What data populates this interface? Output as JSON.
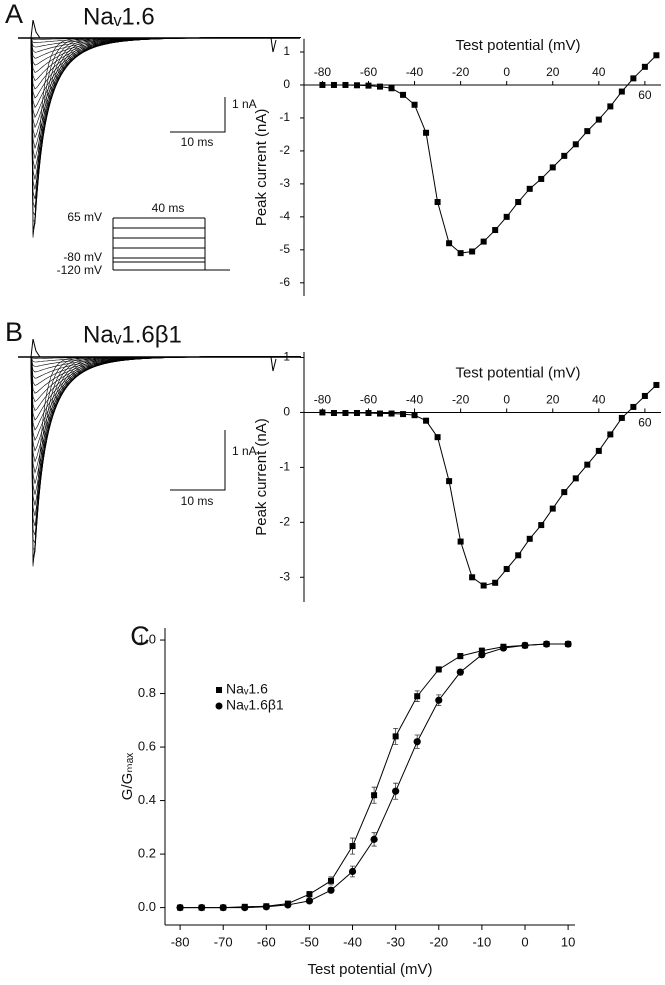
{
  "chart_data": [
    {
      "type": "line",
      "panel": "A",
      "title": "Naᵥ1.6",
      "annotations": [
        "1 nA",
        "10 ms",
        "65 mV",
        "40 ms",
        "-80 mV",
        "-120 mV"
      ],
      "x_label": "Test potential (mV)",
      "y_label": "Peak current (nA)",
      "x": [
        -80,
        -75,
        -70,
        -65,
        -60,
        -55,
        -50,
        -45,
        -40,
        -35,
        -30,
        -25,
        -20,
        -15,
        -10,
        -5,
        0,
        5,
        10,
        15,
        20,
        25,
        30,
        35,
        40,
        45,
        50,
        55,
        60,
        65
      ],
      "series": [
        {
          "color": "#000000",
          "marker": "square",
          "values": [
            0,
            0,
            0,
            -0.01,
            -0.02,
            -0.05,
            -0.1,
            -0.3,
            -0.6,
            -1.45,
            -3.55,
            -4.8,
            -5.1,
            -5.05,
            -4.75,
            -4.4,
            -4.0,
            -3.55,
            -3.15,
            -2.85,
            -2.5,
            -2.15,
            -1.8,
            -1.4,
            -1.05,
            -0.65,
            -0.2,
            0.2,
            0.55,
            0.9
          ]
        }
      ],
      "xlim": [
        -88,
        67
      ],
      "xticks": [
        -80,
        -60,
        -40,
        -20,
        0,
        20,
        40,
        60
      ],
      "ylim": [
        -6.4,
        1.4
      ],
      "yticks": [
        1,
        0,
        -1,
        -2,
        -3,
        -4,
        -5,
        -6
      ]
    },
    {
      "type": "line",
      "panel": "B",
      "title": "Naᵥ1.6β1",
      "annotations": [
        "1 nA",
        "10 ms"
      ],
      "x_label": "Test potential (mV)",
      "y_label": "Peak current (nA)",
      "x": [
        -80,
        -75,
        -70,
        -65,
        -60,
        -55,
        -50,
        -45,
        -40,
        -35,
        -30,
        -25,
        -20,
        -15,
        -10,
        -5,
        0,
        5,
        10,
        15,
        20,
        25,
        30,
        35,
        40,
        45,
        50,
        55,
        60,
        65
      ],
      "series": [
        {
          "color": "#000000",
          "marker": "square",
          "values": [
            0,
            -0.01,
            -0.01,
            -0.01,
            -0.01,
            -0.02,
            -0.02,
            -0.03,
            -0.05,
            -0.15,
            -0.45,
            -1.25,
            -2.35,
            -3.0,
            -3.15,
            -3.1,
            -2.85,
            -2.6,
            -2.3,
            -2.05,
            -1.75,
            -1.45,
            -1.2,
            -0.95,
            -0.7,
            -0.4,
            -0.1,
            0.1,
            0.3,
            0.5
          ]
        }
      ],
      "xlim": [
        -88,
        67
      ],
      "xticks": [
        -80,
        -60,
        -40,
        -20,
        0,
        20,
        40,
        60
      ],
      "ylim": [
        -3.45,
        1.1
      ],
      "yticks": [
        1,
        0,
        -1,
        -2,
        -3
      ]
    },
    {
      "type": "line",
      "panel": "C",
      "x_label": "Test potential (mV)",
      "y_label": "G/Gₘₐₓ",
      "legend": "upper left",
      "x": [
        -80,
        -75,
        -70,
        -65,
        -60,
        -55,
        -50,
        -45,
        -40,
        -35,
        -30,
        -25,
        -20,
        -15,
        -10,
        -5,
        0,
        5,
        10
      ],
      "series": [
        {
          "name": "Naᵥ1.6",
          "color": "#000000",
          "marker": "square",
          "values": [
            0,
            0,
            0,
            0.003,
            0.005,
            0.015,
            0.05,
            0.1,
            0.23,
            0.42,
            0.64,
            0.79,
            0.89,
            0.94,
            0.96,
            0.975,
            0.98,
            0.985,
            0.985
          ],
          "errors": [
            0,
            0,
            0,
            0,
            0,
            0.005,
            0.01,
            0.015,
            0.03,
            0.03,
            0.03,
            0.02,
            0.01,
            0.01,
            0.01,
            0.005,
            0.005,
            0.005,
            0.005
          ]
        },
        {
          "name": "Naᵥ1.6β1",
          "color": "#000000",
          "marker": "circle",
          "values": [
            0,
            0,
            0,
            0,
            0.003,
            0.01,
            0.025,
            0.065,
            0.135,
            0.255,
            0.435,
            0.62,
            0.775,
            0.88,
            0.945,
            0.97,
            0.98,
            0.985,
            0.985
          ],
          "errors": [
            0,
            0,
            0,
            0,
            0,
            0.005,
            0.008,
            0.01,
            0.02,
            0.025,
            0.03,
            0.025,
            0.02,
            0.01,
            0.01,
            0.005,
            0.005,
            0.005,
            0.005
          ]
        }
      ],
      "xlim": [
        -83.5,
        11.6
      ],
      "xticks": [
        -80,
        -70,
        -60,
        -50,
        -40,
        -30,
        -20,
        -10,
        0,
        10
      ],
      "ylim": [
        -0.065,
        1.045
      ],
      "yticks": [
        {
          "value": 0,
          "label": "0.0"
        },
        0.2,
        0.4,
        0.6,
        0.8,
        {
          "value": 1,
          "label": "1.0"
        }
      ]
    }
  ]
}
